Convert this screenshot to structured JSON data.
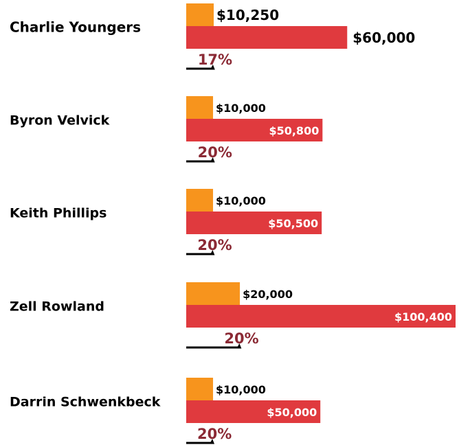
{
  "chart_data": {
    "type": "bar",
    "categories": [
      "Charlie Youngers",
      "Byron Velvick",
      "Keith Phillips",
      "Zell Rowland",
      "Darrin Schwenkbeck"
    ],
    "series": [
      {
        "color": "#f7941d",
        "values": [
          10250,
          10000,
          10000,
          20000,
          10000
        ],
        "value_labels": [
          "$10,250",
          "$10,000",
          "$10,000",
          "$20,000",
          "$10,000"
        ]
      },
      {
        "color": "#e03a3e",
        "values": [
          60000,
          50800,
          50500,
          100400,
          50000
        ],
        "value_labels": [
          "$60,000",
          "$50,800",
          "$50,500",
          "$100,400",
          "$50,000"
        ]
      }
    ],
    "percent": {
      "color": "#8b2a35",
      "values": [
        17,
        20,
        20,
        20,
        20
      ],
      "value_labels": [
        "17%",
        "20%",
        "20%",
        "20%",
        "20%"
      ]
    }
  }
}
